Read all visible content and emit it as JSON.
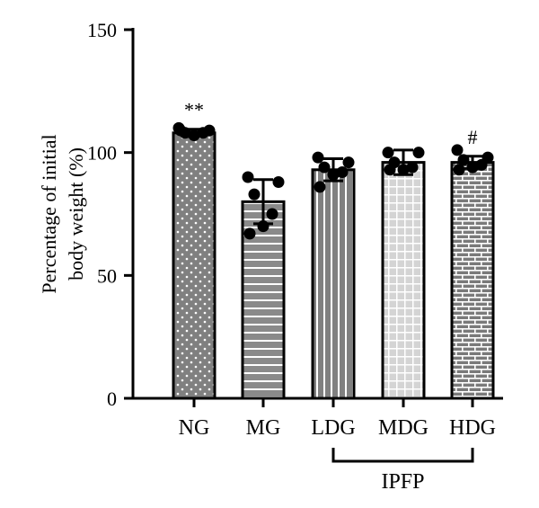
{
  "chart_data": {
    "type": "bar",
    "title": "",
    "xlabel": "",
    "ylabel": "Percentage of initial body weight (%)",
    "ylabel_lines": [
      "Percentage of initial",
      "body weight (%)"
    ],
    "ylim": [
      0,
      150
    ],
    "yticks": [
      "0",
      "50",
      "100",
      "150"
    ],
    "categories": [
      "NG",
      "MG",
      "LDG",
      "MDG",
      "HDG"
    ],
    "values": [
      108,
      80,
      93,
      96,
      96
    ],
    "errors": [
      1.5,
      9,
      4.5,
      5,
      2.5
    ],
    "points": [
      [
        110,
        109,
        108,
        108,
        107,
        109
      ],
      [
        90,
        88,
        83,
        75,
        70,
        67
      ],
      [
        98,
        96,
        94,
        92,
        91,
        86
      ],
      [
        100,
        100,
        96,
        94,
        93,
        93
      ],
      [
        101,
        98,
        97,
        95,
        94,
        93
      ]
    ],
    "annotations": [
      "**",
      "",
      "",
      "",
      "#"
    ],
    "group_label": "IPFP",
    "group_span": [
      "LDG",
      "HDG"
    ],
    "grid": false,
    "legend": "none",
    "patterns": [
      "dots",
      "horizontal-lines",
      "vertical-stripes",
      "grid",
      "brick"
    ],
    "colors": {
      "bar": "#808080",
      "line": "#000000",
      "pattern": "#ffffff"
    }
  }
}
